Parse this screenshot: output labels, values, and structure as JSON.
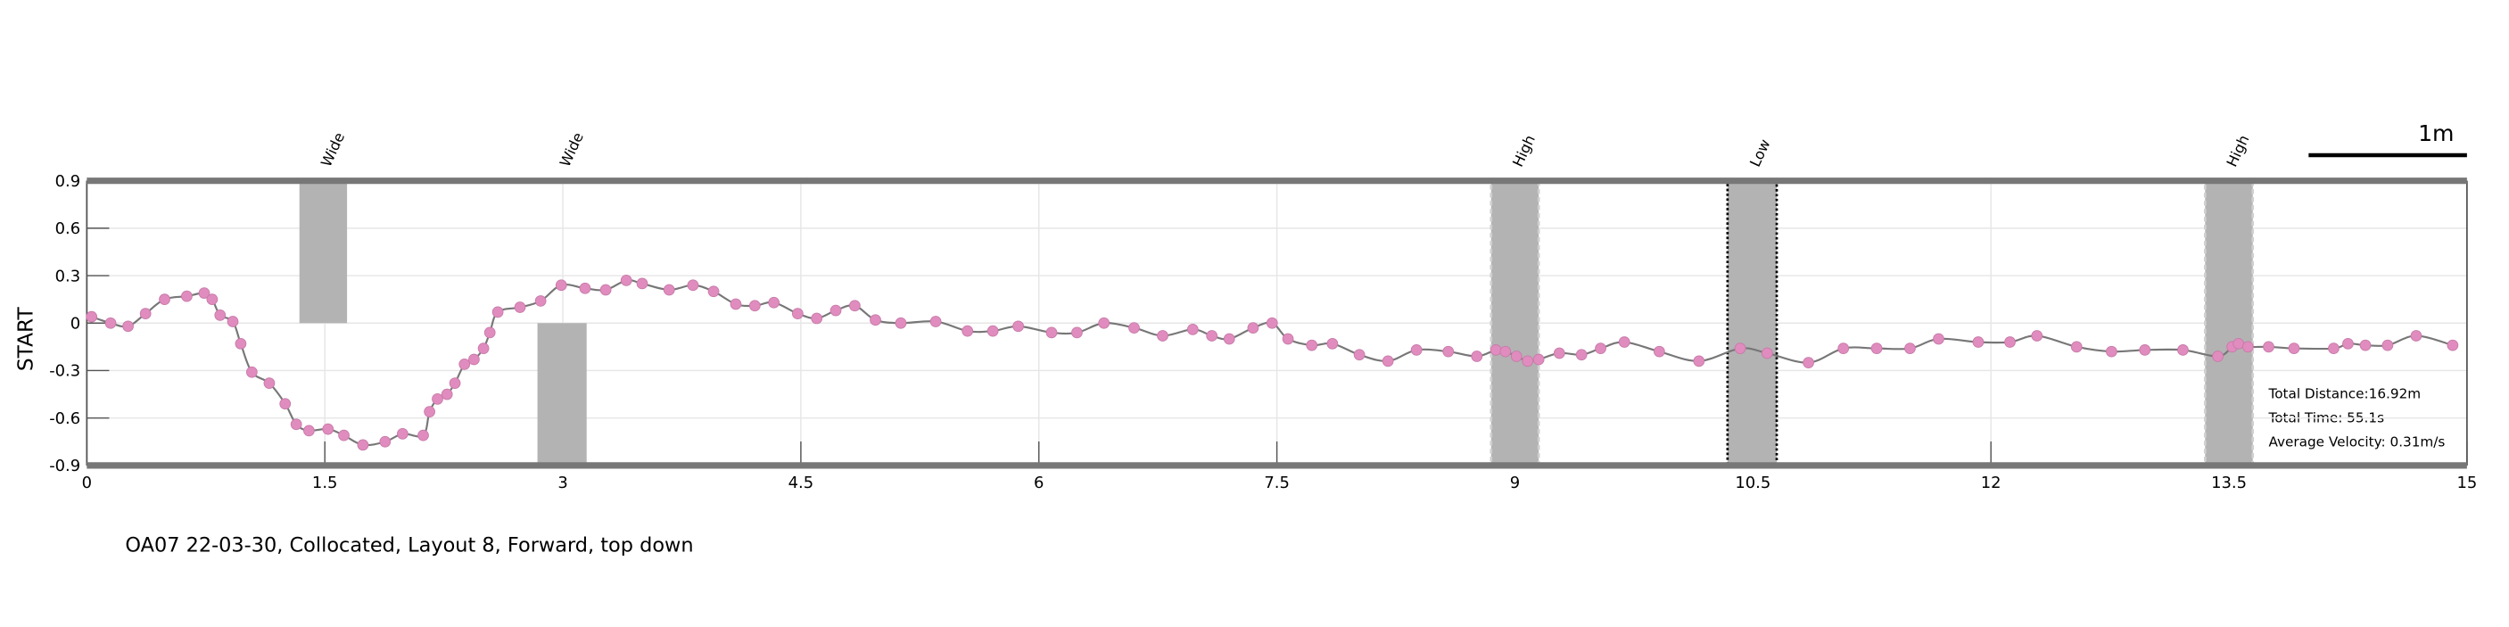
{
  "chart_data": {
    "type": "line",
    "ylabel": "START",
    "caption": "OA07 22-03-30, Collocated, Layout 8, Forward, top down",
    "scale_label": "1m",
    "stats": [
      "Total Distance:16.92m",
      "Total Time: 55.1s",
      "Average Velocity: 0.31m/s"
    ],
    "xlim": [
      0,
      15
    ],
    "ylim": [
      -0.9,
      0.9
    ],
    "xticks": [
      0,
      1.5,
      3,
      4.5,
      6,
      7.5,
      9,
      10.5,
      12,
      13.5,
      15
    ],
    "yticks": [
      0.9,
      0.6,
      0.3,
      0,
      -0.3,
      -0.6,
      -0.9
    ],
    "grid": true,
    "line_color": "#777777",
    "marker_color": "#e08cbf",
    "regions": [
      {
        "label": "Wide",
        "x0": 1.34,
        "x1": 1.64,
        "y0": 0,
        "y1": 0.9,
        "border": "none"
      },
      {
        "label": "Wide",
        "x0": 2.84,
        "x1": 3.15,
        "y0": -0.9,
        "y1": 0,
        "border": "none"
      },
      {
        "label": "High",
        "x0": 8.85,
        "x1": 9.15,
        "y0": -0.9,
        "y1": 0.9,
        "border": "dashed"
      },
      {
        "label": "Low",
        "x0": 10.34,
        "x1": 10.65,
        "y0": -0.9,
        "y1": 0.9,
        "border": "dotted"
      },
      {
        "label": "High",
        "x0": 13.35,
        "x1": 13.65,
        "y0": -0.9,
        "y1": 0.9,
        "border": "dashed"
      }
    ],
    "x": [
      0.03,
      0.15,
      0.26,
      0.37,
      0.49,
      0.63,
      0.74,
      0.79,
      0.84,
      0.92,
      0.97,
      1.04,
      1.15,
      1.25,
      1.32,
      1.4,
      1.52,
      1.62,
      1.74,
      1.88,
      1.99,
      2.12,
      2.16,
      2.21,
      2.27,
      2.32,
      2.38,
      2.44,
      2.5,
      2.54,
      2.59,
      2.73,
      2.86,
      2.99,
      3.14,
      3.27,
      3.4,
      3.5,
      3.67,
      3.82,
      3.95,
      4.09,
      4.21,
      4.33,
      4.48,
      4.6,
      4.72,
      4.84,
      4.97,
      5.13,
      5.35,
      5.55,
      5.71,
      5.87,
      6.08,
      6.24,
      6.41,
      6.6,
      6.78,
      6.97,
      7.09,
      7.2,
      7.35,
      7.47,
      7.57,
      7.72,
      7.85,
      8.02,
      8.2,
      8.38,
      8.58,
      8.76,
      8.88,
      8.94,
      9.01,
      9.08,
      9.15,
      9.28,
      9.42,
      9.54,
      9.69,
      9.91,
      10.16,
      10.42,
      10.59,
      10.85,
      11.07,
      11.28,
      11.49,
      11.67,
      11.92,
      12.12,
      12.29,
      12.54,
      12.76,
      12.97,
      13.21,
      13.43,
      13.52,
      13.56,
      13.62,
      13.75,
      13.91,
      14.16,
      14.25,
      14.36,
      14.5,
      14.68,
      14.91
    ],
    "values": [
      0.04,
      0,
      -0.02,
      0.06,
      0.15,
      0.17,
      0.19,
      0.15,
      0.05,
      0.01,
      -0.13,
      -0.31,
      -0.38,
      -0.51,
      -0.64,
      -0.68,
      -0.67,
      -0.71,
      -0.77,
      -0.75,
      -0.7,
      -0.71,
      -0.56,
      -0.48,
      -0.45,
      -0.38,
      -0.26,
      -0.23,
      -0.16,
      -0.06,
      0.07,
      0.1,
      0.14,
      0.24,
      0.22,
      0.21,
      0.27,
      0.25,
      0.21,
      0.24,
      0.2,
      0.12,
      0.11,
      0.13,
      0.06,
      0.03,
      0.08,
      0.11,
      0.02,
      0,
      0.01,
      -0.05,
      -0.05,
      -0.02,
      -0.06,
      -0.06,
      0,
      -0.03,
      -0.08,
      -0.04,
      -0.08,
      -0.1,
      -0.03,
      0,
      -0.1,
      -0.14,
      -0.13,
      -0.2,
      -0.24,
      -0.17,
      -0.18,
      -0.21,
      -0.17,
      -0.18,
      -0.21,
      -0.24,
      -0.23,
      -0.19,
      -0.2,
      -0.16,
      -0.12,
      -0.18,
      -0.24,
      -0.16,
      -0.19,
      -0.25,
      -0.16,
      -0.16,
      -0.16,
      -0.1,
      -0.12,
      -0.12,
      -0.08,
      -0.15,
      -0.18,
      -0.17,
      -0.17,
      -0.21,
      -0.15,
      -0.13,
      -0.15,
      -0.15,
      -0.16,
      -0.16,
      -0.13,
      -0.14,
      -0.14,
      -0.08,
      -0.14
    ]
  }
}
